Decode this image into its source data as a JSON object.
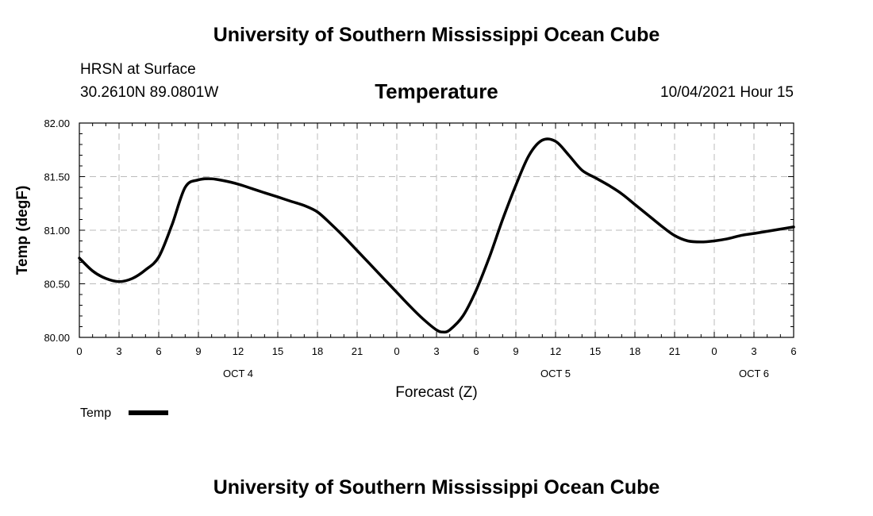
{
  "header": {
    "top_title": "University of Southern Mississippi Ocean Cube",
    "station": "HRSN at Surface",
    "coords": "30.2610N  89.0801W",
    "datetime": "10/04/2021 Hour 15",
    "bottom_title": "University of Southern Mississippi Ocean Cube"
  },
  "chart_data": {
    "type": "line",
    "title": "Temperature",
    "xlabel": "Forecast (Z)",
    "ylabel": "Temp (degF)",
    "ylim": [
      80.0,
      82.0
    ],
    "y_ticks": [
      "80.00",
      "80.50",
      "81.00",
      "81.50",
      "82.00"
    ],
    "x_range_hours": [
      0,
      54
    ],
    "x_tick_labels": [
      "0",
      "3",
      "6",
      "9",
      "12",
      "15",
      "18",
      "21",
      "0",
      "3",
      "6",
      "9",
      "12",
      "15",
      "18",
      "21",
      "0",
      "3",
      "6"
    ],
    "date_labels": [
      {
        "label": "OCT 4",
        "hour": 12
      },
      {
        "label": "OCT 5",
        "hour": 36
      },
      {
        "label": "OCT 6",
        "hour": 51
      }
    ],
    "grid": true,
    "legend_position": "bottom-left",
    "series": [
      {
        "name": "Temp",
        "color": "#000000",
        "x": [
          0,
          1,
          2,
          3,
          4,
          5,
          6,
          7,
          8,
          9,
          10,
          11,
          12,
          13,
          14,
          15,
          16,
          17,
          18,
          19,
          20,
          21,
          22,
          23,
          24,
          25,
          26,
          27,
          27.5,
          28,
          29,
          30,
          31,
          32,
          33,
          34,
          35,
          36,
          37,
          38,
          39,
          40,
          41,
          42,
          43,
          44,
          45,
          46,
          47,
          48,
          49,
          50,
          51,
          52,
          53,
          54
        ],
        "values": [
          80.74,
          80.62,
          80.55,
          80.52,
          80.55,
          80.63,
          80.75,
          81.05,
          81.4,
          81.47,
          81.48,
          81.46,
          81.43,
          81.39,
          81.35,
          81.31,
          81.27,
          81.23,
          81.17,
          81.06,
          80.94,
          80.81,
          80.68,
          80.55,
          80.42,
          80.29,
          80.17,
          80.07,
          80.05,
          80.07,
          80.2,
          80.44,
          80.75,
          81.1,
          81.42,
          81.7,
          81.84,
          81.83,
          81.7,
          81.56,
          81.49,
          81.42,
          81.34,
          81.24,
          81.14,
          81.04,
          80.95,
          80.9,
          80.89,
          80.9,
          80.92,
          80.95,
          80.97,
          80.99,
          81.01,
          81.03
        ]
      }
    ]
  }
}
